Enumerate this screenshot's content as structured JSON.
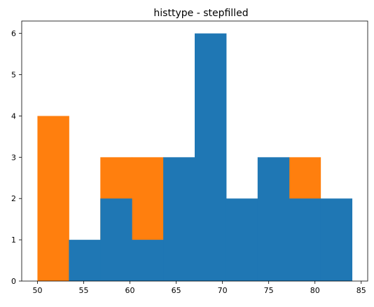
{
  "chart_data": {
    "type": "bar",
    "title": "histtype - stepfilled",
    "xlabel": "",
    "ylabel": "",
    "xlim": [
      48.3,
      85.7
    ],
    "ylim": [
      0,
      6.3
    ],
    "xticks": [
      50,
      55,
      60,
      65,
      70,
      75,
      80,
      85
    ],
    "yticks": [
      0,
      1,
      2,
      3,
      4,
      5,
      6
    ],
    "grid": false,
    "bin_edges": [
      50,
      53.4,
      56.8,
      60.2,
      63.6,
      67.0,
      70.4,
      73.8,
      77.2,
      80.6,
      84.0
    ],
    "series": [
      {
        "color": "#ff7f0e",
        "values": [
          4,
          0,
          3,
          3,
          0,
          0,
          0,
          0,
          3,
          0
        ]
      },
      {
        "color": "#1f77b4",
        "values": [
          0,
          1,
          2,
          1,
          3,
          6,
          2,
          3,
          2,
          2
        ]
      }
    ]
  }
}
